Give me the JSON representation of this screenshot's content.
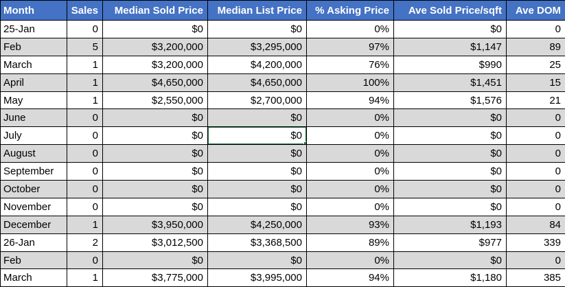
{
  "colors": {
    "header_bg": "#4472C4",
    "header_fg": "#FFFFFF",
    "row_shade": "#D9D9D9",
    "grid_border": "#000000",
    "selection_green": "#217346"
  },
  "table": {
    "columns": [
      "Month",
      "Sales",
      "Median Sold Price",
      "Median List Price",
      "% Asking Price",
      "Ave Sold Price/sqft",
      "Ave DOM"
    ],
    "rows": [
      [
        "25-Jan",
        "0",
        "$0",
        "$0",
        "0%",
        "$0",
        "0"
      ],
      [
        "Feb",
        "5",
        "$3,200,000",
        "$3,295,000",
        "97%",
        "$1,147",
        "89"
      ],
      [
        "March",
        "1",
        "$3,200,000",
        "$4,200,000",
        "76%",
        "$990",
        "25"
      ],
      [
        "April",
        "1",
        "$4,650,000",
        "$4,650,000",
        "100%",
        "$1,451",
        "15"
      ],
      [
        "May",
        "1",
        "$2,550,000",
        "$2,700,000",
        "94%",
        "$1,576",
        "21"
      ],
      [
        "June",
        "0",
        "$0",
        "$0",
        "0%",
        "$0",
        "0"
      ],
      [
        "July",
        "0",
        "$0",
        "$0",
        "0%",
        "$0",
        "0"
      ],
      [
        "August",
        "0",
        "$0",
        "$0",
        "0%",
        "$0",
        "0"
      ],
      [
        "September",
        "0",
        "$0",
        "$0",
        "0%",
        "$0",
        "0"
      ],
      [
        "October",
        "0",
        "$0",
        "$0",
        "0%",
        "$0",
        "0"
      ],
      [
        "November",
        "0",
        "$0",
        "$0",
        "0%",
        "$0",
        "0"
      ],
      [
        "December",
        "1",
        "$3,950,000",
        "$4,250,000",
        "93%",
        "$1,193",
        "84"
      ],
      [
        "26-Jan",
        "2",
        "$3,012,500",
        "$3,368,500",
        "89%",
        "$977",
        "339"
      ],
      [
        "Feb",
        "0",
        "$0",
        "$0",
        "0%",
        "$0",
        "0"
      ],
      [
        "March",
        "1",
        "$3,775,000",
        "$3,995,000",
        "94%",
        "$1,180",
        "385"
      ]
    ],
    "selection": {
      "row": 6,
      "col": 3,
      "value": "$0"
    }
  }
}
